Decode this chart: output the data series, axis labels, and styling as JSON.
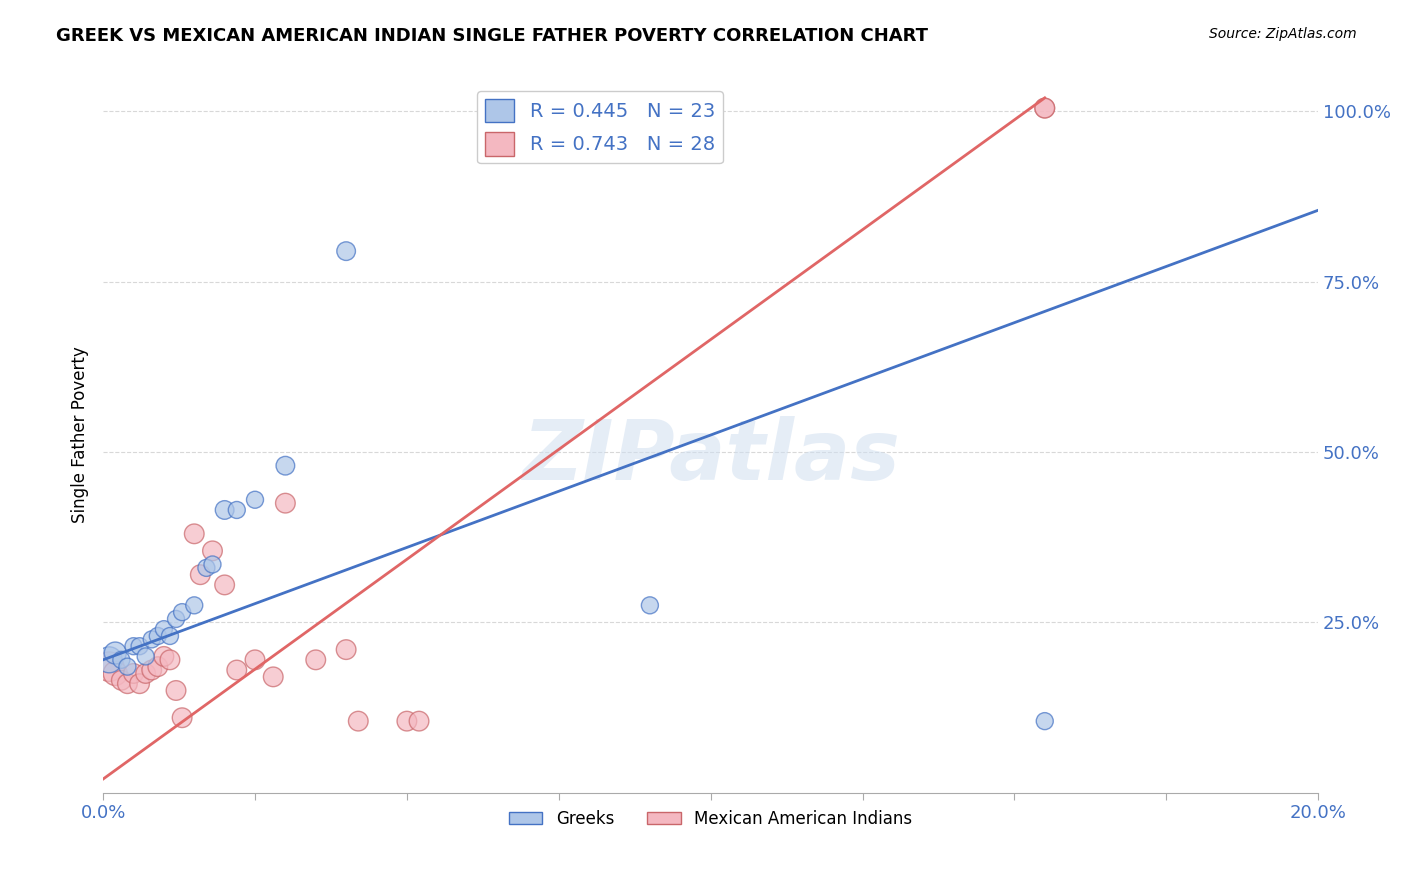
{
  "title": "GREEK VS MEXICAN AMERICAN INDIAN SINGLE FATHER POVERTY CORRELATION CHART",
  "source": "Source: ZipAtlas.com",
  "ylabel": "Single Father Poverty",
  "xmin": 0.0,
  "xmax": 0.2,
  "ymin": 0.0,
  "ymax": 1.05,
  "ytick_vals": [
    0.25,
    0.5,
    0.75,
    1.0
  ],
  "ytick_labels": [
    "25.0%",
    "50.0%",
    "75.0%",
    "100.0%"
  ],
  "xtick_vals": [
    0.0,
    0.025,
    0.05,
    0.075,
    0.1,
    0.125,
    0.15,
    0.175,
    0.2
  ],
  "xtick_labels": [
    "0.0%",
    "",
    "",
    "",
    "",
    "",
    "",
    "",
    "20.0%"
  ],
  "blue_face": "#aec6e8",
  "blue_edge": "#4472c4",
  "pink_face": "#f4b8c1",
  "pink_edge": "#c9666a",
  "blue_line": "#4472c4",
  "pink_line": "#e06666",
  "R_blue": 0.445,
  "N_blue": 23,
  "R_pink": 0.743,
  "N_pink": 28,
  "legend_label_blue": "Greeks",
  "legend_label_pink": "Mexican American Indians",
  "watermark": "ZIPatlas",
  "blue_line_y0": 0.195,
  "blue_line_y1": 0.855,
  "pink_line_y0": 0.02,
  "pink_line_y1": 1.02,
  "pink_line_x1": 0.155,
  "greek_points": [
    [
      0.001,
      0.195
    ],
    [
      0.002,
      0.205
    ],
    [
      0.003,
      0.195
    ],
    [
      0.004,
      0.185
    ],
    [
      0.005,
      0.215
    ],
    [
      0.006,
      0.215
    ],
    [
      0.007,
      0.2
    ],
    [
      0.008,
      0.225
    ],
    [
      0.009,
      0.23
    ],
    [
      0.01,
      0.24
    ],
    [
      0.011,
      0.23
    ],
    [
      0.012,
      0.255
    ],
    [
      0.013,
      0.265
    ],
    [
      0.015,
      0.275
    ],
    [
      0.017,
      0.33
    ],
    [
      0.018,
      0.335
    ],
    [
      0.02,
      0.415
    ],
    [
      0.022,
      0.415
    ],
    [
      0.025,
      0.43
    ],
    [
      0.03,
      0.48
    ],
    [
      0.04,
      0.795
    ],
    [
      0.09,
      0.275
    ],
    [
      0.155,
      0.105
    ]
  ],
  "greek_sizes": [
    350,
    250,
    150,
    150,
    150,
    150,
    150,
    150,
    150,
    150,
    150,
    150,
    150,
    150,
    150,
    150,
    180,
    150,
    150,
    180,
    180,
    150,
    150
  ],
  "mexican_points": [
    [
      0.001,
      0.185
    ],
    [
      0.002,
      0.175
    ],
    [
      0.003,
      0.165
    ],
    [
      0.004,
      0.16
    ],
    [
      0.005,
      0.175
    ],
    [
      0.006,
      0.16
    ],
    [
      0.007,
      0.175
    ],
    [
      0.008,
      0.18
    ],
    [
      0.009,
      0.185
    ],
    [
      0.01,
      0.2
    ],
    [
      0.011,
      0.195
    ],
    [
      0.012,
      0.15
    ],
    [
      0.013,
      0.11
    ],
    [
      0.015,
      0.38
    ],
    [
      0.016,
      0.32
    ],
    [
      0.018,
      0.355
    ],
    [
      0.02,
      0.305
    ],
    [
      0.022,
      0.18
    ],
    [
      0.025,
      0.195
    ],
    [
      0.028,
      0.17
    ],
    [
      0.03,
      0.425
    ],
    [
      0.035,
      0.195
    ],
    [
      0.04,
      0.21
    ],
    [
      0.042,
      0.105
    ],
    [
      0.05,
      0.105
    ],
    [
      0.052,
      0.105
    ],
    [
      0.155,
      1.005
    ],
    [
      0.155,
      1.005
    ]
  ],
  "mexican_sizes": [
    450,
    300,
    200,
    200,
    200,
    200,
    200,
    200,
    200,
    200,
    200,
    200,
    200,
    200,
    200,
    200,
    200,
    200,
    200,
    200,
    200,
    200,
    200,
    200,
    200,
    200,
    200,
    200
  ]
}
